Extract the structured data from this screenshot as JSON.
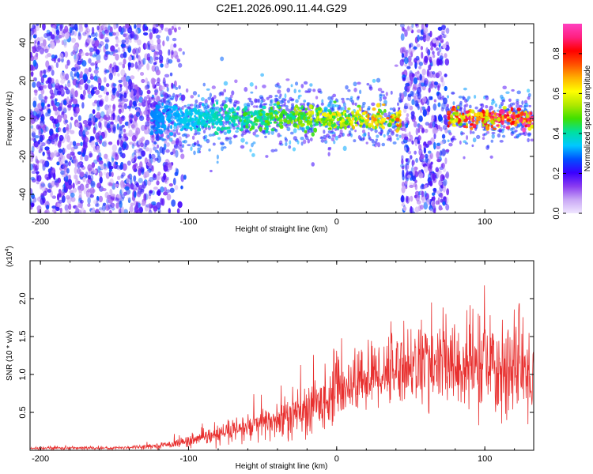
{
  "title": "C2E1.2026.090.11.44.G29",
  "chart_data": [
    {
      "type": "heatmap",
      "xlabel": "Height of straight line (km)",
      "ylabel": "Frequency (Hz)",
      "xlim": [
        -207,
        133
      ],
      "ylim": [
        -50,
        50
      ],
      "xticks": [
        -200,
        -100,
        0,
        100
      ],
      "xtick_labels": [
        "-200",
        "-100",
        "0",
        "100"
      ],
      "yticks": [
        -40,
        -20,
        0,
        20,
        40
      ],
      "ytick_labels": [
        "-40",
        "-20",
        "0",
        "20",
        "40"
      ],
      "colorbar": {
        "label": "Normalized spectral amplitude",
        "range": [
          0,
          0.95
        ],
        "ticks": [
          0.0,
          0.2,
          0.4,
          0.6,
          0.8
        ],
        "tick_labels": [
          "0.0",
          "0.2",
          "0.4",
          "0.6",
          "0.8"
        ],
        "colors": [
          "#f0e6ff",
          "#c9a8f5",
          "#8a3cf0",
          "#3a00ff",
          "#0050ff",
          "#00c8ff",
          "#00e0a0",
          "#40e000",
          "#b0e800",
          "#ffff00",
          "#ffb000",
          "#ff5000",
          "#ff0000",
          "#ff2080",
          "#ff40c0"
        ]
      },
      "regions": [
        {
          "name": "diffuse noise",
          "x_range": [
            -207,
            -110
          ],
          "freq_range": [
            -50,
            50
          ],
          "amplitude": 0.15
        },
        {
          "name": "signal band",
          "x_range": [
            -125,
            133
          ],
          "center_freq": 0,
          "half_width_hz": 6,
          "amplitude_start": 0.3,
          "amplitude_end": 0.9
        },
        {
          "name": "broadband burst",
          "x_range": [
            44,
            75
          ],
          "freq_range": [
            -50,
            50
          ],
          "amplitude": 0.15
        }
      ]
    },
    {
      "type": "line",
      "xlabel": "Height of straight line (km)",
      "ylabel": "SNR (10 * v/v)",
      "multiplier_label": "(x10",
      "multiplier_exp": "4",
      "color": "#e8302f",
      "xlim": [
        -207,
        133
      ],
      "ylim": [
        0,
        2.5
      ],
      "xticks": [
        -200,
        -100,
        0,
        100
      ],
      "xtick_labels": [
        "-200",
        "-100",
        "0",
        "100"
      ],
      "yticks": [
        0.5,
        1.0,
        1.5,
        2.0
      ],
      "ytick_labels": [
        "0.5",
        "1.0",
        "1.5",
        "2.0"
      ],
      "envelope": [
        {
          "x": -207,
          "mean": 0.03,
          "spread": 0.02
        },
        {
          "x": -150,
          "mean": 0.03,
          "spread": 0.02
        },
        {
          "x": -120,
          "mean": 0.06,
          "spread": 0.03
        },
        {
          "x": -100,
          "mean": 0.12,
          "spread": 0.07
        },
        {
          "x": -80,
          "mean": 0.2,
          "spread": 0.12
        },
        {
          "x": -60,
          "mean": 0.3,
          "spread": 0.18
        },
        {
          "x": -40,
          "mean": 0.4,
          "spread": 0.25
        },
        {
          "x": -20,
          "mean": 0.5,
          "spread": 0.35
        },
        {
          "x": 0,
          "mean": 0.8,
          "spread": 0.35
        },
        {
          "x": 20,
          "mean": 0.95,
          "spread": 0.4
        },
        {
          "x": 40,
          "mean": 1.1,
          "spread": 0.45
        },
        {
          "x": 60,
          "mean": 1.15,
          "spread": 0.5
        },
        {
          "x": 80,
          "mean": 1.1,
          "spread": 0.55
        },
        {
          "x": 100,
          "mean": 1.1,
          "spread": 0.6
        },
        {
          "x": 120,
          "mean": 1.05,
          "spread": 0.6
        },
        {
          "x": 133,
          "mean": 1.0,
          "spread": 0.55
        }
      ]
    }
  ]
}
